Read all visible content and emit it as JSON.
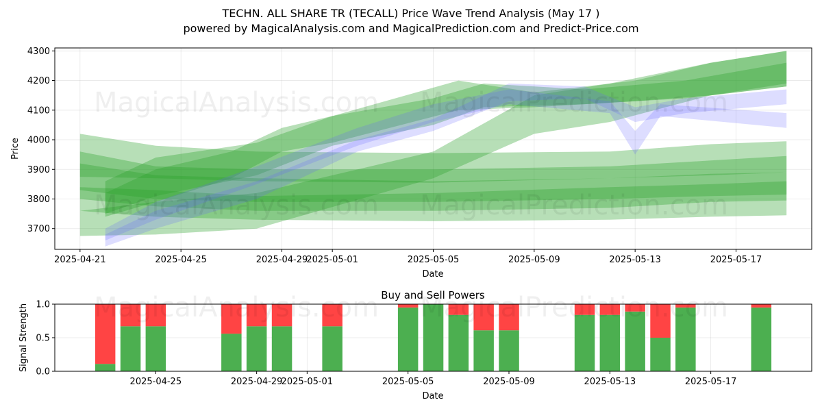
{
  "figure": {
    "title_line1": "TECHN. ALL SHARE TR (TECALL) Price Wave Trend Analysis (May 17 )",
    "title_line2": "powered by MagicalAnalysis.com and MagicalPrediction.com and Predict-Price.com",
    "watermarks": [
      "MagicalAnalysis.com",
      "MagicalPrediction.com"
    ],
    "colors": {
      "green": "#2ca02c",
      "blue": "#6666ff",
      "buy": "#4caf50",
      "sell": "#ff4444"
    }
  },
  "chart_data": [
    {
      "type": "area",
      "name": "price-wave-trend",
      "xlabel": "Date",
      "ylabel": "Price",
      "x_ticks": [
        "2025-04-21",
        "2025-04-25",
        "2025-04-29",
        "2025-05-01",
        "2025-05-05",
        "2025-05-09",
        "2025-05-13",
        "2025-05-17"
      ],
      "y_ticks": [
        3700,
        3800,
        3900,
        4000,
        4100,
        4200,
        4300
      ],
      "xlim": [
        "2025-04-20",
        "2025-05-20"
      ],
      "ylim": [
        3630,
        4310
      ],
      "grid": true,
      "bands": [
        {
          "color": "green",
          "x": [
            "2025-04-21",
            "2025-04-24",
            "2025-04-28",
            "2025-05-05",
            "2025-05-12",
            "2025-05-16",
            "2025-05-19"
          ],
          "low": [
            3760,
            3740,
            3730,
            3725,
            3730,
            3740,
            3745
          ],
          "high": [
            3920,
            3880,
            3870,
            3860,
            3870,
            3885,
            3890
          ]
        },
        {
          "color": "green",
          "x": [
            "2025-04-21",
            "2025-04-24",
            "2025-04-28",
            "2025-05-05",
            "2025-05-12",
            "2025-05-16",
            "2025-05-19"
          ],
          "low": [
            3800,
            3775,
            3760,
            3760,
            3770,
            3790,
            3795
          ],
          "high": [
            3840,
            3830,
            3810,
            3820,
            3840,
            3850,
            3860
          ]
        },
        {
          "color": "green",
          "x": [
            "2025-04-21",
            "2025-04-24",
            "2025-04-28",
            "2025-05-05",
            "2025-05-12",
            "2025-05-16",
            "2025-05-19"
          ],
          "low": [
            3830,
            3800,
            3790,
            3790,
            3800,
            3810,
            3815
          ],
          "high": [
            3960,
            3910,
            3900,
            3900,
            3910,
            3930,
            3945
          ]
        },
        {
          "color": "green",
          "x": [
            "2025-04-21",
            "2025-04-24",
            "2025-04-28",
            "2025-05-05",
            "2025-05-12",
            "2025-05-16",
            "2025-05-19"
          ],
          "low": [
            3875,
            3870,
            3860,
            3855,
            3870,
            3880,
            3890
          ],
          "high": [
            4020,
            3980,
            3960,
            3955,
            3960,
            3985,
            3995
          ]
        },
        {
          "color": "green",
          "x": [
            "2025-04-21",
            "2025-04-24",
            "2025-04-28",
            "2025-05-05",
            "2025-05-09",
            "2025-05-12",
            "2025-05-16",
            "2025-05-19"
          ],
          "low": [
            3675,
            3680,
            3700,
            3870,
            4020,
            4060,
            4150,
            4180
          ],
          "high": [
            3760,
            3790,
            3820,
            3960,
            4150,
            4190,
            4260,
            4300
          ]
        },
        {
          "color": "green",
          "x": [
            "2025-04-22",
            "2025-04-24",
            "2025-04-27",
            "2025-04-29",
            "2025-05-01",
            "2025-05-06",
            "2025-05-09",
            "2025-05-13",
            "2025-05-16",
            "2025-05-19"
          ],
          "low": [
            3740,
            3790,
            3870,
            3960,
            3990,
            4100,
            4110,
            4130,
            4150,
            4190
          ],
          "high": [
            3820,
            3900,
            3960,
            4040,
            4080,
            4200,
            4160,
            4200,
            4260,
            4300
          ]
        },
        {
          "color": "green",
          "x": [
            "2025-04-22",
            "2025-04-24",
            "2025-04-28",
            "2025-05-01",
            "2025-05-05",
            "2025-05-07",
            "2025-05-11",
            "2025-05-15",
            "2025-05-19"
          ],
          "low": [
            3750,
            3810,
            3880,
            3980,
            4050,
            4110,
            4120,
            4140,
            4180
          ],
          "high": [
            3860,
            3940,
            3990,
            4080,
            4140,
            4190,
            4170,
            4200,
            4260
          ]
        },
        {
          "color": "blue",
          "x": [
            "2025-04-22",
            "2025-04-24",
            "2025-04-28",
            "2025-05-02",
            "2025-05-05",
            "2025-05-08",
            "2025-05-11",
            "2025-05-13",
            "2025-05-15",
            "2025-05-19"
          ],
          "low": [
            3640,
            3700,
            3800,
            3960,
            4030,
            4130,
            4140,
            4060,
            4090,
            4120
          ],
          "high": [
            3680,
            3760,
            3860,
            4000,
            4070,
            4190,
            4180,
            4110,
            4140,
            4170
          ]
        },
        {
          "color": "blue",
          "x": [
            "2025-04-22",
            "2025-04-24",
            "2025-04-28",
            "2025-05-02",
            "2025-05-05",
            "2025-05-08",
            "2025-05-12",
            "2025-05-13",
            "2025-05-14",
            "2025-05-19"
          ],
          "low": [
            3660,
            3730,
            3850,
            3980,
            4060,
            4120,
            4090,
            3950,
            4080,
            4040
          ],
          "high": [
            3700,
            3790,
            3910,
            4040,
            4120,
            4170,
            4130,
            4030,
            4120,
            4090
          ]
        }
      ]
    },
    {
      "type": "bar",
      "name": "buy-sell-powers",
      "title": "Buy and Sell Powers",
      "xlabel": "Date",
      "ylabel": "Signal Strength",
      "x_ticks": [
        "2025-04-25",
        "2025-04-29",
        "2025-05-01",
        "2025-05-05",
        "2025-05-09",
        "2025-05-13",
        "2025-05-17"
      ],
      "y_ticks": [
        "0.0",
        "0.5",
        "1.0"
      ],
      "xlim": [
        "2025-04-21",
        "2025-05-21"
      ],
      "ylim": [
        0,
        1
      ],
      "grid": true,
      "categories": [
        "2025-04-23",
        "2025-04-24",
        "2025-04-25",
        "2025-04-28",
        "2025-04-29",
        "2025-04-30",
        "2025-05-02",
        "2025-05-05",
        "2025-05-06",
        "2025-05-07",
        "2025-05-08",
        "2025-05-09",
        "2025-05-12",
        "2025-05-13",
        "2025-05-14",
        "2025-05-15",
        "2025-05-16",
        "2025-05-19"
      ],
      "series": [
        {
          "name": "Buy",
          "color": "buy",
          "values": [
            0.11,
            0.67,
            0.67,
            0.56,
            0.67,
            0.67,
            0.67,
            0.95,
            1.0,
            0.84,
            0.61,
            0.61,
            0.84,
            0.84,
            0.89,
            0.5,
            0.95,
            0.95
          ]
        },
        {
          "name": "Sell",
          "color": "sell",
          "values": [
            0.89,
            0.33,
            0.33,
            0.44,
            0.33,
            0.33,
            0.33,
            0.05,
            0.0,
            0.16,
            0.39,
            0.39,
            0.16,
            0.16,
            0.11,
            0.5,
            0.05,
            0.05
          ]
        }
      ]
    }
  ]
}
